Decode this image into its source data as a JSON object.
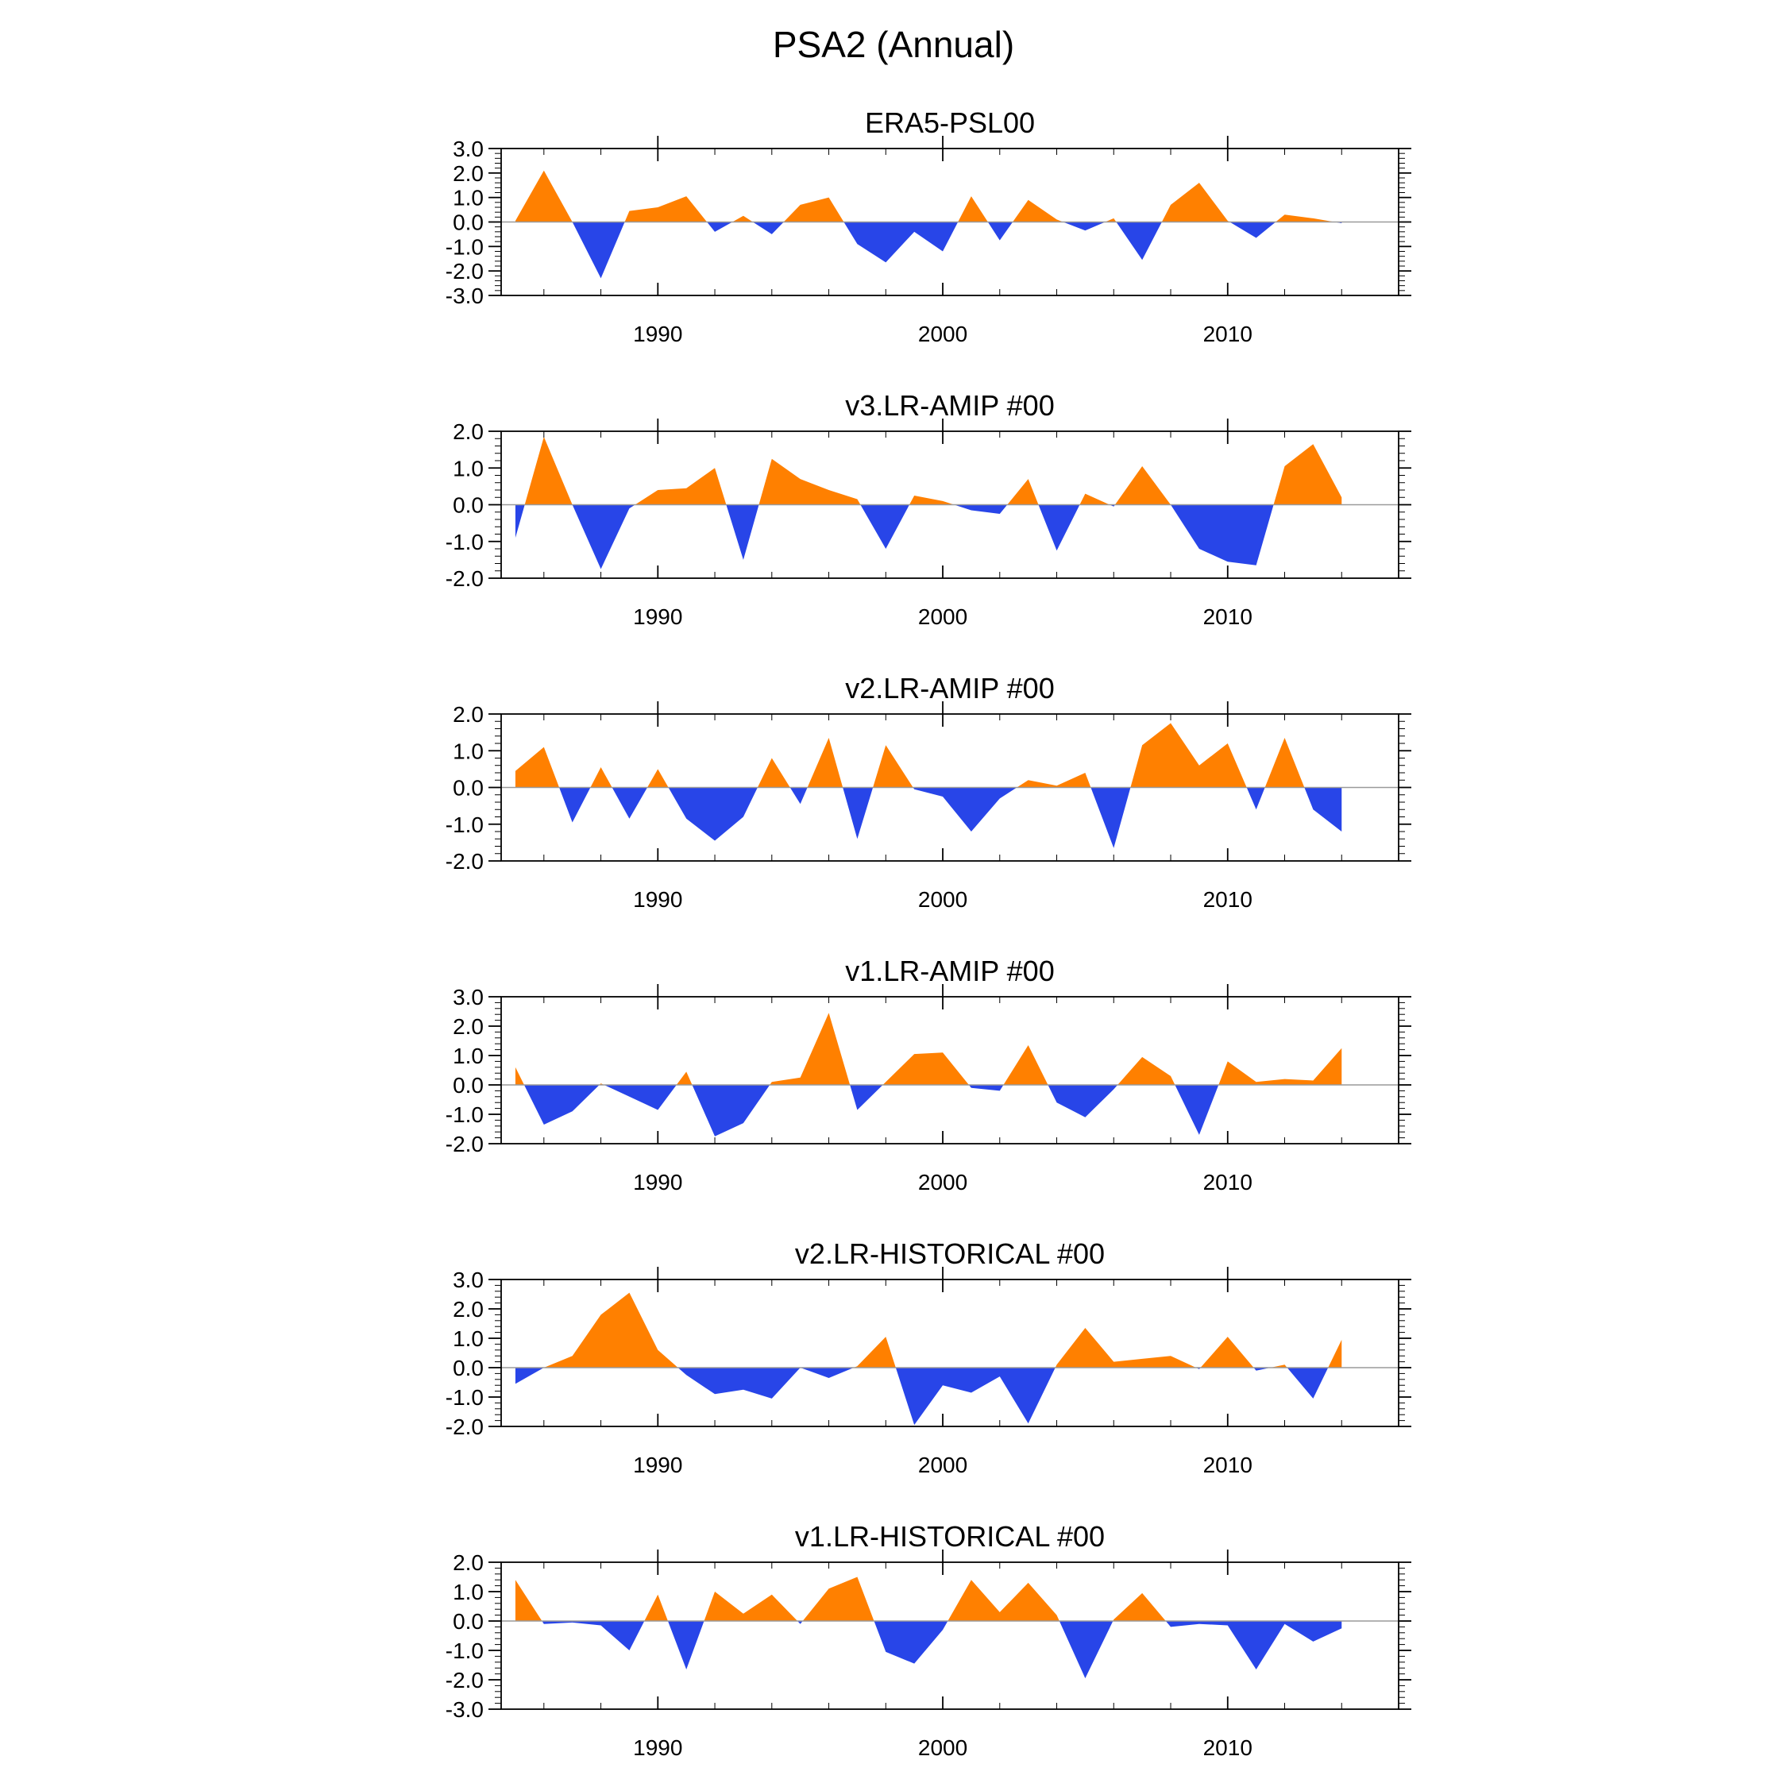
{
  "page_title": "PSA2 (Annual)",
  "colors": {
    "positive": "#ff8000",
    "negative": "#2845e8",
    "axis": "#000000"
  },
  "chart_data": [
    {
      "type": "area",
      "title": "ERA5-PSL00",
      "x_start": 1985,
      "xlim": [
        1984.5,
        2016
      ],
      "x_ticks": [
        1990,
        2000,
        2010
      ],
      "x_tick_labels": [
        "1990",
        "2000",
        "2010"
      ],
      "ylim": [
        -3,
        3
      ],
      "y_ticks": [
        3,
        2,
        1,
        0,
        -1,
        -2,
        -3
      ],
      "y_tick_labels": [
        "3.0",
        "2.0",
        "1.0",
        "0.0",
        "-1.0",
        "-2.0",
        "-3.0"
      ],
      "values": [
        0.05,
        2.1,
        0.0,
        -2.3,
        0.45,
        0.6,
        1.05,
        -0.4,
        0.25,
        -0.5,
        0.7,
        1.0,
        -0.9,
        -1.65,
        -0.4,
        -1.2,
        1.05,
        -0.75,
        0.9,
        0.1,
        -0.35,
        0.15,
        -1.55,
        0.7,
        1.6,
        0.05,
        -0.65,
        0.3,
        0.15,
        -0.05
      ]
    },
    {
      "type": "area",
      "title": "v3.LR-AMIP  #00",
      "x_start": 1985,
      "xlim": [
        1984.5,
        2016
      ],
      "x_ticks": [
        1990,
        2000,
        2010
      ],
      "x_tick_labels": [
        "1990",
        "2000",
        "2010"
      ],
      "ylim": [
        -2,
        2
      ],
      "y_ticks": [
        2,
        1,
        0,
        -1,
        -2
      ],
      "y_tick_labels": [
        "2.0",
        "1.0",
        "0.0",
        "-1.0",
        "-2.0"
      ],
      "values": [
        -0.9,
        1.85,
        0.0,
        -1.75,
        -0.1,
        0.4,
        0.45,
        1.0,
        -1.5,
        1.25,
        0.7,
        0.4,
        0.15,
        -1.2,
        0.25,
        0.1,
        -0.15,
        -0.25,
        0.7,
        -1.25,
        0.3,
        -0.05,
        1.05,
        0.0,
        -1.2,
        -1.55,
        -1.65,
        1.05,
        1.65,
        0.2
      ]
    },
    {
      "type": "area",
      "title": "v2.LR-AMIP  #00",
      "x_start": 1985,
      "xlim": [
        1984.5,
        2016
      ],
      "x_ticks": [
        1990,
        2000,
        2010
      ],
      "x_tick_labels": [
        "1990",
        "2000",
        "2010"
      ],
      "ylim": [
        -2,
        2
      ],
      "y_ticks": [
        2,
        1,
        0,
        -1,
        -2
      ],
      "y_tick_labels": [
        "2.0",
        "1.0",
        "0.0",
        "-1.0",
        "-2.0"
      ],
      "values": [
        0.45,
        1.1,
        -0.95,
        0.55,
        -0.85,
        0.5,
        -0.85,
        -1.45,
        -0.8,
        0.8,
        -0.45,
        1.35,
        -1.4,
        1.15,
        -0.05,
        -0.25,
        -1.2,
        -0.3,
        0.2,
        0.05,
        0.4,
        -1.65,
        1.15,
        1.75,
        0.6,
        1.2,
        -0.6,
        1.35,
        -0.6,
        -1.2
      ]
    },
    {
      "type": "area",
      "title": "v1.LR-AMIP  #00",
      "x_start": 1985,
      "xlim": [
        1984.5,
        2016
      ],
      "x_ticks": [
        1990,
        2000,
        2010
      ],
      "x_tick_labels": [
        "1990",
        "2000",
        "2010"
      ],
      "ylim": [
        -2,
        3
      ],
      "y_ticks": [
        3,
        2,
        1,
        0,
        -1,
        -2
      ],
      "y_tick_labels": [
        "3.0",
        "2.0",
        "1.0",
        "0.0",
        "-1.0",
        "-2.0"
      ],
      "values": [
        0.6,
        -1.35,
        -0.9,
        0.05,
        -0.4,
        -0.85,
        0.45,
        -1.75,
        -1.3,
        0.1,
        0.25,
        2.45,
        -0.85,
        0.1,
        1.05,
        1.1,
        -0.1,
        -0.2,
        1.35,
        -0.6,
        -1.1,
        -0.15,
        0.95,
        0.3,
        -1.7,
        0.8,
        0.1,
        0.2,
        0.15,
        1.25
      ]
    },
    {
      "type": "area",
      "title": "v2.LR-HISTORICAL  #00",
      "x_start": 1985,
      "xlim": [
        1984.5,
        2016
      ],
      "x_ticks": [
        1990,
        2000,
        2010
      ],
      "x_tick_labels": [
        "1990",
        "2000",
        "2010"
      ],
      "ylim": [
        -2,
        3
      ],
      "y_ticks": [
        3,
        2,
        1,
        0,
        -1,
        -2
      ],
      "y_tick_labels": [
        "3.0",
        "2.0",
        "1.0",
        "0.0",
        "-1.0",
        "-2.0"
      ],
      "values": [
        -0.55,
        0.0,
        0.4,
        1.8,
        2.55,
        0.6,
        -0.25,
        -0.9,
        -0.75,
        -1.05,
        0.0,
        -0.35,
        0.05,
        1.05,
        -1.95,
        -0.6,
        -0.85,
        -0.3,
        -1.9,
        0.1,
        1.35,
        0.2,
        0.3,
        0.4,
        -0.05,
        1.05,
        -0.1,
        0.1,
        -1.05,
        0.95
      ]
    },
    {
      "type": "area",
      "title": "v1.LR-HISTORICAL  #00",
      "x_start": 1985,
      "xlim": [
        1984.5,
        2016
      ],
      "x_ticks": [
        1990,
        2000,
        2010
      ],
      "x_tick_labels": [
        "1990",
        "2000",
        "2010"
      ],
      "ylim": [
        -3,
        2
      ],
      "y_ticks": [
        2,
        1,
        0,
        -1,
        -2,
        -3
      ],
      "y_tick_labels": [
        "2.0",
        "1.0",
        "0.0",
        "-1.0",
        "-2.0",
        "-3.0"
      ],
      "values": [
        1.4,
        -0.1,
        -0.05,
        -0.15,
        -1.0,
        0.9,
        -1.65,
        1.0,
        0.25,
        0.9,
        -0.1,
        1.1,
        1.5,
        -1.05,
        -1.45,
        -0.3,
        1.4,
        0.3,
        1.3,
        0.2,
        -1.95,
        0.05,
        0.95,
        -0.2,
        -0.1,
        -0.15,
        -1.65,
        -0.1,
        -0.7,
        -0.25
      ]
    }
  ]
}
